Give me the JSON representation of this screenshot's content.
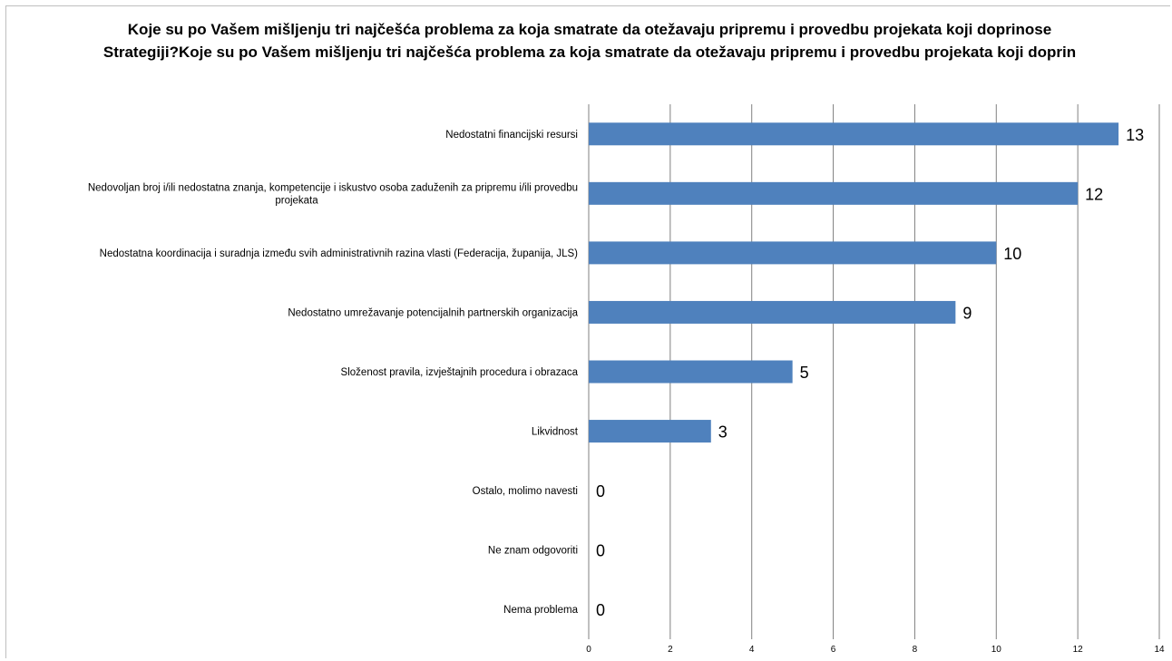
{
  "chart_data": {
    "type": "bar",
    "orientation": "horizontal",
    "title": "Koje su po Vašem mišljenju tri najčešća problema za koja smatrate da otežavaju pripremu i provedbu projekata koji doprinose Strategiji?Koje su po Vašem mišljenju tri najčešća problema za koja smatrate da otežavaju pripremu i provedbu projekata koji doprin",
    "categories": [
      [
        "Nedostatni financijski resursi"
      ],
      [
        "Nedovoljan broj i/ili nedostatna znanja, kompetencije i iskustvo osoba zaduženih za pripremu i/ili provedbu",
        "projekata"
      ],
      [
        "Nedostatna koordinacija i suradnja između svih administrativnih razina vlasti (Federacija, županija, JLS)"
      ],
      [
        "Nedostatno umrežavanje potencijalnih partnerskih organizacija"
      ],
      [
        "Složenost pravila, izvještajnih procedura i obrazaca"
      ],
      [
        "Likvidnost"
      ],
      [
        "Ostalo, molimo navesti"
      ],
      [
        "Ne znam odgovoriti"
      ],
      [
        "Nema problema"
      ]
    ],
    "values": [
      13,
      12,
      10,
      9,
      5,
      3,
      0,
      0,
      0
    ],
    "xlim": [
      0,
      14
    ],
    "xticks": [
      0,
      2,
      4,
      6,
      8,
      10,
      12,
      14
    ],
    "grid": true,
    "legend": "none",
    "bar_color": "#4f81bd",
    "gridline_color": "#808080"
  }
}
